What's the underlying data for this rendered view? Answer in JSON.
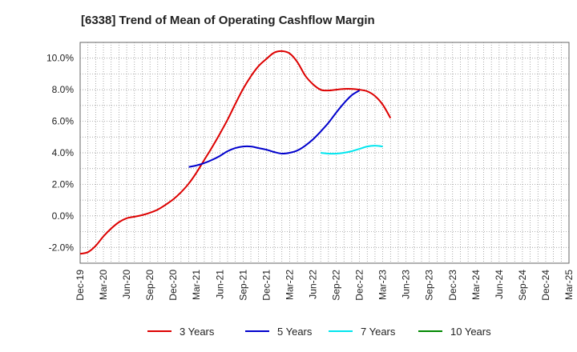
{
  "chart_data": {
    "type": "line",
    "title": "[6338]  Trend of Mean of Operating Cashflow Margin",
    "xlabel": "",
    "ylabel": "",
    "x_ticks": [
      "Dec-19",
      "Mar-20",
      "Jun-20",
      "Sep-20",
      "Dec-20",
      "Mar-21",
      "Jun-21",
      "Sep-21",
      "Dec-21",
      "Mar-22",
      "Jun-22",
      "Sep-22",
      "Dec-22",
      "Mar-23",
      "Jun-23",
      "Sep-23",
      "Dec-23",
      "Mar-24",
      "Jun-24",
      "Sep-24",
      "Dec-24",
      "Mar-25"
    ],
    "y_ticks": [
      "-2.0%",
      "0.0%",
      "2.0%",
      "4.0%",
      "6.0%",
      "8.0%",
      "10.0%"
    ],
    "y_tick_values": [
      -2,
      0,
      2,
      4,
      6,
      8,
      10
    ],
    "ylim": [
      -3,
      11
    ],
    "grid": true,
    "legend_position": "bottom",
    "series": [
      {
        "name": "3 Years",
        "color": "#dd0000",
        "start_index": 0,
        "values": [
          -2.4,
          -2.3,
          -1.9,
          -1.3,
          -0.8,
          -0.4,
          -0.15,
          -0.05,
          0.05,
          0.2,
          0.4,
          0.7,
          1.05,
          1.5,
          2.05,
          2.75,
          3.55,
          4.35,
          5.2,
          6.1,
          7.1,
          8.05,
          8.85,
          9.5,
          9.95,
          10.35,
          10.45,
          10.3,
          9.75,
          8.9,
          8.35,
          8.0,
          7.95,
          8.0,
          8.05,
          8.05,
          8.0,
          7.9,
          7.6,
          7.05,
          6.2
        ]
      },
      {
        "name": "5 Years",
        "color": "#0000cc",
        "start_index": 14,
        "values": [
          3.1,
          3.2,
          3.35,
          3.55,
          3.8,
          4.1,
          4.3,
          4.4,
          4.4,
          4.3,
          4.2,
          4.05,
          3.95,
          4.0,
          4.15,
          4.45,
          4.85,
          5.35,
          5.9,
          6.55,
          7.15,
          7.65,
          7.95
        ]
      },
      {
        "name": "7 Years",
        "color": "#00e5ee",
        "start_index": 31,
        "values": [
          4.0,
          3.95,
          3.95,
          4.0,
          4.1,
          4.25,
          4.4,
          4.45,
          4.4
        ]
      },
      {
        "name": "10 Years",
        "color": "#008800",
        "start_index": 0,
        "values": []
      }
    ]
  }
}
